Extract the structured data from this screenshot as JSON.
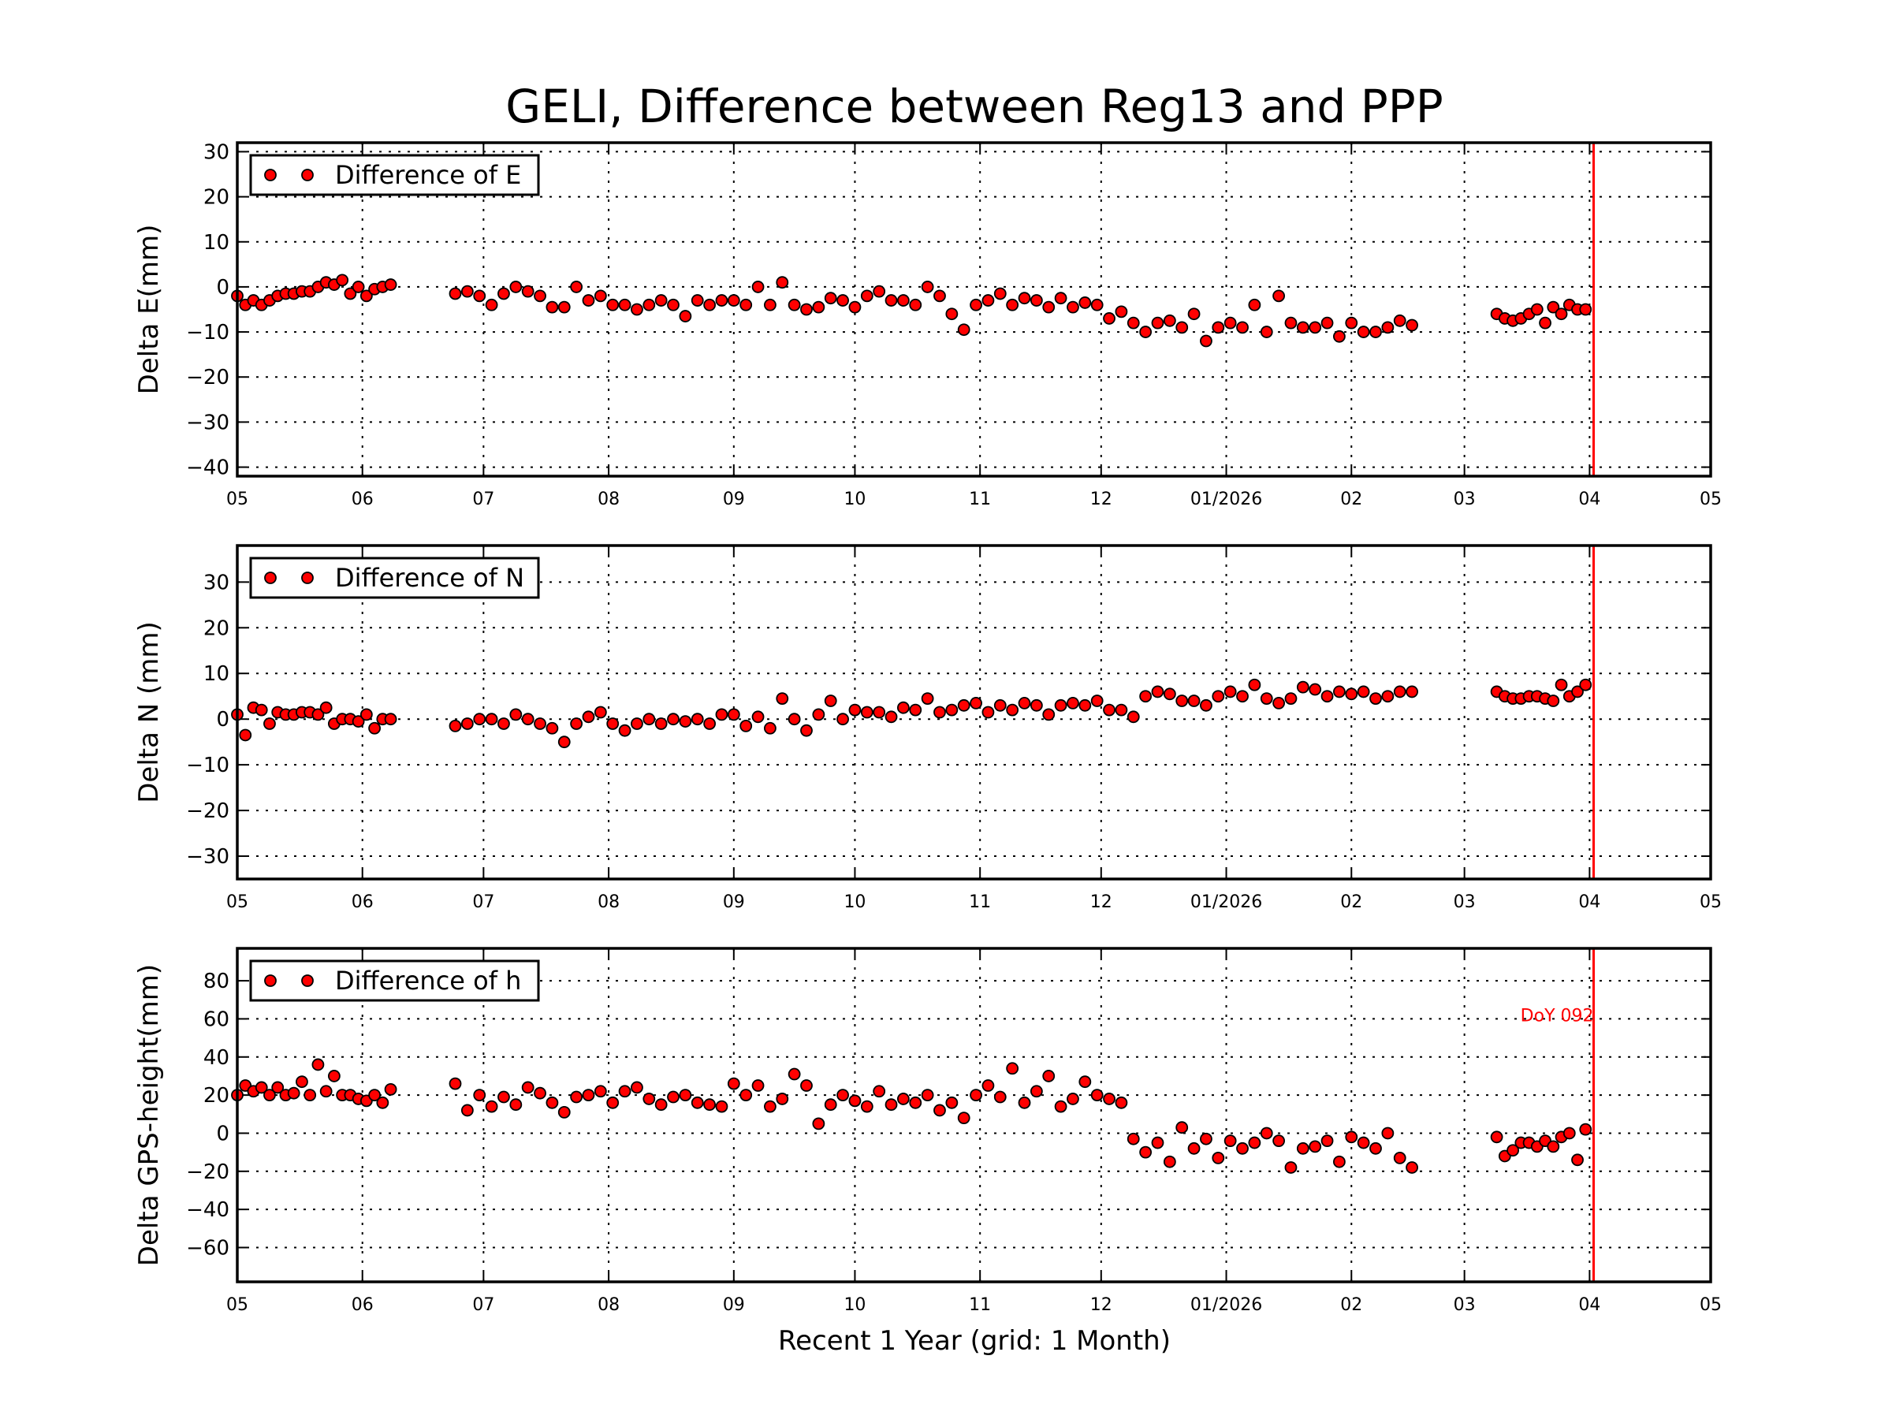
{
  "title": "GELI, Difference between Reg13 and PPP",
  "chart_data": {
    "type": "scatter",
    "title": "GELI, Difference between Reg13 and PPP",
    "xlabel": "Recent 1 Year (grid: 1 Month)",
    "xlim": [
      "2025-05-01",
      "2026-05-01"
    ],
    "x_ticks": [
      {
        "date": "2025-05-01",
        "label": "05"
      },
      {
        "date": "2025-06-01",
        "label": "06"
      },
      {
        "date": "2025-07-01",
        "label": "07"
      },
      {
        "date": "2025-08-01",
        "label": "08"
      },
      {
        "date": "2025-09-01",
        "label": "09"
      },
      {
        "date": "2025-10-01",
        "label": "10"
      },
      {
        "date": "2025-11-01",
        "label": "11"
      },
      {
        "date": "2025-12-01",
        "label": "12"
      },
      {
        "date": "2026-01-01",
        "label": "01/2026"
      },
      {
        "date": "2026-02-01",
        "label": "02"
      },
      {
        "date": "2026-03-01",
        "label": "03"
      },
      {
        "date": "2026-04-01",
        "label": "04"
      },
      {
        "date": "2026-05-01",
        "label": "05"
      }
    ],
    "grid": true,
    "marker_color": "#ff0000",
    "reference_line": {
      "date": "2026-04-02",
      "color": "#ff0000",
      "label": "DoY 092"
    },
    "dates": [
      "2025-05-01",
      "2025-05-03",
      "2025-05-05",
      "2025-05-07",
      "2025-05-09",
      "2025-05-11",
      "2025-05-13",
      "2025-05-15",
      "2025-05-17",
      "2025-05-19",
      "2025-05-21",
      "2025-05-23",
      "2025-05-25",
      "2025-05-27",
      "2025-05-29",
      "2025-05-31",
      "2025-06-02",
      "2025-06-04",
      "2025-06-06",
      "2025-06-08",
      "2025-06-24",
      "2025-06-27",
      "2025-06-30",
      "2025-07-03",
      "2025-07-06",
      "2025-07-09",
      "2025-07-12",
      "2025-07-15",
      "2025-07-18",
      "2025-07-21",
      "2025-07-24",
      "2025-07-27",
      "2025-07-30",
      "2025-08-02",
      "2025-08-05",
      "2025-08-08",
      "2025-08-11",
      "2025-08-14",
      "2025-08-17",
      "2025-08-20",
      "2025-08-23",
      "2025-08-26",
      "2025-08-29",
      "2025-09-01",
      "2025-09-04",
      "2025-09-07",
      "2025-09-10",
      "2025-09-13",
      "2025-09-16",
      "2025-09-19",
      "2025-09-22",
      "2025-09-25",
      "2025-09-28",
      "2025-10-01",
      "2025-10-04",
      "2025-10-07",
      "2025-10-10",
      "2025-10-13",
      "2025-10-16",
      "2025-10-19",
      "2025-10-22",
      "2025-10-25",
      "2025-10-28",
      "2025-10-31",
      "2025-11-03",
      "2025-11-06",
      "2025-11-09",
      "2025-11-12",
      "2025-11-15",
      "2025-11-18",
      "2025-11-21",
      "2025-11-24",
      "2025-11-27",
      "2025-11-30",
      "2025-12-03",
      "2025-12-06",
      "2025-12-09",
      "2025-12-12",
      "2025-12-15",
      "2025-12-18",
      "2025-12-21",
      "2025-12-24",
      "2025-12-27",
      "2025-12-30",
      "2026-01-02",
      "2026-01-05",
      "2026-01-08",
      "2026-01-11",
      "2026-01-14",
      "2026-01-17",
      "2026-01-20",
      "2026-01-23",
      "2026-01-26",
      "2026-01-29",
      "2026-02-01",
      "2026-02-04",
      "2026-02-07",
      "2026-02-10",
      "2026-02-13",
      "2026-02-16",
      "2026-03-09",
      "2026-03-11",
      "2026-03-13",
      "2026-03-15",
      "2026-03-17",
      "2026-03-19",
      "2026-03-21",
      "2026-03-23",
      "2026-03-25",
      "2026-03-27",
      "2026-03-29",
      "2026-03-31"
    ],
    "panels": [
      {
        "ylabel": "Delta E(mm)",
        "legend": "Difference of E",
        "legend_position": "top-left",
        "ylim": [
          -42,
          32
        ],
        "y_ticks": [
          -40,
          -30,
          -20,
          -10,
          0,
          10,
          20,
          30
        ],
        "y_tick_labels": [
          "−40",
          "−30",
          "−20",
          "−10",
          "0",
          "10",
          "20",
          "30"
        ],
        "values": [
          -2,
          -4,
          -3,
          -4,
          -3,
          -2,
          -1.5,
          -1.5,
          -1,
          -1,
          0,
          1,
          0.5,
          1.5,
          -1.5,
          0,
          -2,
          -0.5,
          0,
          0.5,
          -1.5,
          -1,
          -2,
          -4,
          -1.5,
          0,
          -1,
          -2,
          -4.5,
          -4.5,
          0,
          -3,
          -2,
          -4,
          -4,
          -5,
          -4,
          -3,
          -4,
          -6.5,
          -3,
          -4,
          -3,
          -3,
          -4,
          0,
          -4,
          1,
          -4,
          -5,
          -4.5,
          -2.5,
          -3,
          -4.5,
          -2,
          -1,
          -3,
          -3,
          -4,
          0,
          -2,
          -6,
          -9.5,
          -4,
          -3,
          -1.5,
          -4,
          -2.5,
          -3,
          -4.5,
          -2.5,
          -4.5,
          -3.5,
          -4,
          -7,
          -5.5,
          -8,
          -10,
          -8,
          -7.5,
          -9,
          -6,
          -12,
          -9,
          -8,
          -9,
          -4,
          -10,
          -2,
          -8,
          -9,
          -9,
          -8,
          -11,
          -8,
          -10,
          -10,
          -9,
          -7.5,
          -8.5,
          -6,
          -7,
          -7.5,
          -7,
          -6,
          -5,
          -8,
          -4.5,
          -6,
          -4,
          -5,
          -5
        ]
      },
      {
        "ylabel": "Delta N (mm)",
        "legend": "Difference of N",
        "legend_position": "top-left",
        "ylim": [
          -35,
          38
        ],
        "y_ticks": [
          -30,
          -20,
          -10,
          0,
          10,
          20,
          30
        ],
        "y_tick_labels": [
          "−30",
          "−20",
          "−10",
          "0",
          "10",
          "20",
          "30"
        ],
        "values": [
          1,
          -3.5,
          2.5,
          2,
          -1,
          1.5,
          1,
          1,
          1.5,
          1.5,
          1,
          2.5,
          -1,
          0,
          0,
          -0.5,
          1,
          -2,
          0,
          0,
          -1.5,
          -1,
          0,
          0,
          -1,
          1,
          0,
          -1,
          -2,
          -5,
          -1,
          0.5,
          1.5,
          -1,
          -2.5,
          -1,
          0,
          -1,
          0,
          -0.5,
          0,
          -1,
          1,
          1,
          -1.5,
          0.5,
          -2,
          4.5,
          0,
          -2.5,
          1,
          4,
          0,
          2,
          1.5,
          1.5,
          0.5,
          2.5,
          2,
          4.5,
          1.5,
          2,
          3,
          3.5,
          1.5,
          3,
          2,
          3.5,
          3,
          1,
          3,
          3.5,
          3,
          4,
          2,
          2,
          0.5,
          5,
          6,
          5.5,
          4,
          4,
          3,
          5,
          6,
          5,
          7.5,
          4.5,
          3.5,
          4.5,
          7,
          6.5,
          5,
          6,
          5.5,
          6,
          4.5,
          5,
          6,
          6,
          6,
          5,
          4.5,
          4.5,
          5,
          5,
          4.5,
          4,
          7.5,
          5,
          6,
          7.5
        ]
      },
      {
        "ylabel": "Delta GPS-height(mm)",
        "legend": "Difference of h",
        "legend_position": "top-left",
        "ylim": [
          -78,
          97
        ],
        "y_ticks": [
          -60,
          -40,
          -20,
          0,
          20,
          40,
          60,
          80
        ],
        "y_tick_labels": [
          "−60",
          "−40",
          "−20",
          "0",
          "20",
          "40",
          "60",
          "80"
        ],
        "values": [
          20,
          25,
          22,
          24,
          20,
          24,
          20,
          21,
          27,
          20,
          36,
          22,
          30,
          20,
          20,
          18,
          17,
          20,
          16,
          23,
          26,
          12,
          20,
          14,
          19,
          15,
          24,
          21,
          16,
          11,
          19,
          20,
          22,
          16,
          22,
          24,
          18,
          15,
          19,
          20,
          16,
          15,
          14,
          26,
          20,
          25,
          14,
          18,
          31,
          25,
          5,
          15,
          20,
          17,
          14,
          22,
          15,
          18,
          16,
          20,
          12,
          16,
          8,
          20,
          25,
          19,
          34,
          16,
          22,
          30,
          14,
          18,
          27,
          20,
          18,
          16,
          -3,
          -10,
          -5,
          -15,
          3,
          -8,
          -3,
          -13,
          -4,
          -8,
          -5,
          0,
          -4,
          -18,
          -8,
          -7,
          -4,
          -15,
          -2,
          -5,
          -8,
          0,
          -13,
          -18,
          -2,
          -12,
          -9,
          -5,
          -5,
          -7,
          -4,
          -7,
          -2,
          0,
          -14,
          2
        ]
      }
    ]
  }
}
